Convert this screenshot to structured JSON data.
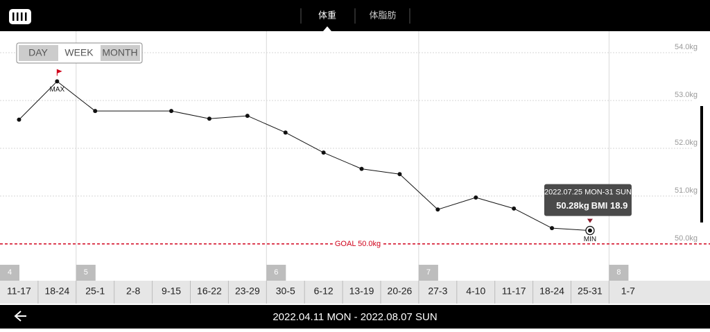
{
  "tabs": [
    "体重",
    "体脂肪"
  ],
  "range_buttons": [
    "DAY",
    "WEEK",
    "MONTH"
  ],
  "selected_range": "WEEK",
  "date_range": "2022.04.11 MON - 2022.08.07 SUN",
  "chart_data": {
    "type": "line",
    "categories": [
      "11-17",
      "18-24",
      "25-1",
      "2-8",
      "9-15",
      "16-22",
      "23-29",
      "30-5",
      "6-12",
      "13-19",
      "20-26",
      "27-3",
      "4-10",
      "11-17",
      "18-24",
      "25-31",
      "1-7"
    ],
    "series": [
      {
        "name": "体重",
        "color": "#111111",
        "values": [
          52.6,
          53.4,
          52.78,
          null,
          52.78,
          52.62,
          52.68,
          52.33,
          51.91,
          51.57,
          51.46,
          50.72,
          50.97,
          50.74,
          50.33,
          50.28,
          null
        ]
      }
    ],
    "connect_gaps": true,
    "ylim": [
      49.23,
      54.45
    ],
    "yticks": [
      {
        "value": 50,
        "label": "50.0kg"
      },
      {
        "value": 51,
        "label": "51.0kg"
      },
      {
        "value": 52,
        "label": "52.0kg"
      },
      {
        "value": 53,
        "label": "53.0kg"
      },
      {
        "value": 54,
        "label": "54.0kg"
      }
    ],
    "grid": true,
    "goal": {
      "value": 50,
      "label": "GOAL 50.0kg",
      "color": "#d0021b"
    },
    "max_label": "MAX",
    "min_label": "MIN",
    "months": [
      "4",
      "5",
      "6",
      "7",
      "8"
    ],
    "tooltip": {
      "date": "2022.07.25 MON-31 SUN",
      "value": "50.28kg",
      "bmi": "BMI 18.9"
    }
  }
}
